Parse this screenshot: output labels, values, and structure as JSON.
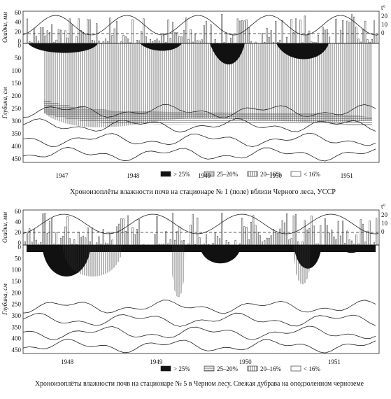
{
  "panels": [
    {
      "precip_label": "Осадки, мм",
      "precip_ticks": [
        "60",
        "40",
        "20",
        "0"
      ],
      "depth_label": "Глубина, см",
      "depth_ticks": [
        "0",
        "50",
        "100",
        "150",
        "200",
        "250",
        "300",
        "350",
        "400",
        "450"
      ],
      "temp_label": "t°",
      "temp_ticks": [
        "20",
        "10",
        "0"
      ],
      "years": [
        "1947",
        "1948",
        "1949",
        "1950",
        "1951"
      ],
      "legend": [
        "> 25%",
        "25–20%",
        "20–16%",
        "< 16%"
      ],
      "caption": "Хроноизоплёты влажности почв на стационаре № 1 (поле) вблизи Черного леса, УССР"
    },
    {
      "precip_label": "Осадки, мм",
      "precip_ticks": [
        "60",
        "40",
        "20",
        "0"
      ],
      "depth_label": "Глубина, см",
      "depth_ticks": [
        "0",
        "50",
        "100",
        "150",
        "200",
        "250",
        "300",
        "350",
        "400",
        "450"
      ],
      "temp_label": "t°",
      "temp_ticks": [
        "20",
        "10",
        "0"
      ],
      "years": [
        "1948",
        "1949",
        "1950",
        "1951"
      ],
      "legend": [
        "> 25%",
        "25–20%",
        "20–16%",
        "< 16%"
      ],
      "caption": "Хроноизоплёты влажности почв на стационаре № 5 в Черном лесу. Свежая дубрава на оподзоленном черноземе"
    }
  ]
}
